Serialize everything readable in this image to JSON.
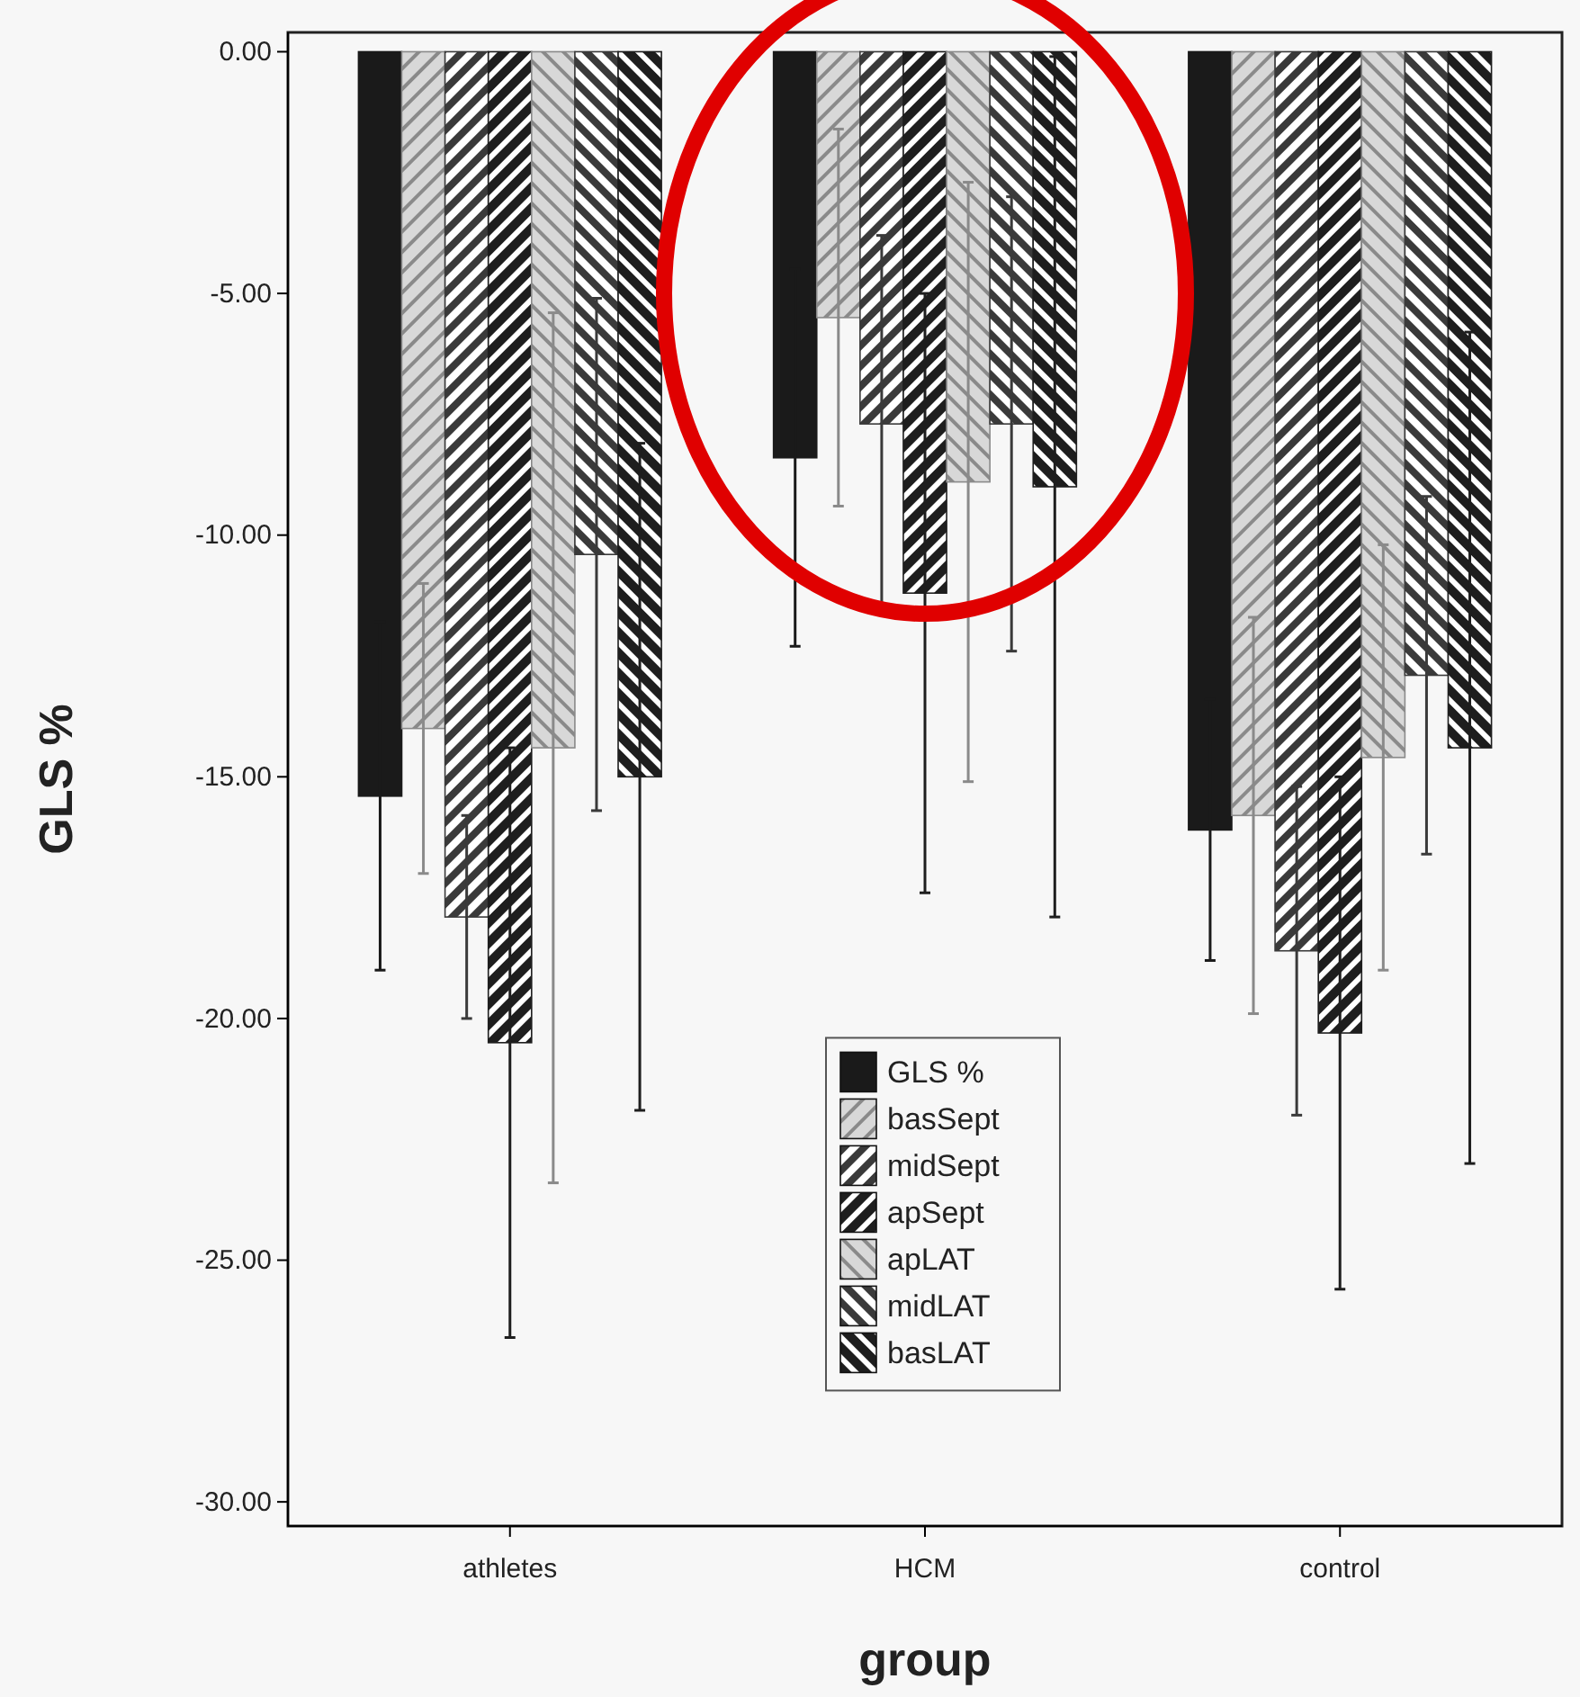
{
  "chart_data": {
    "type": "bar",
    "xlabel": "group",
    "ylabel": "GLS %",
    "categories": [
      "athletes",
      "HCM",
      "control"
    ],
    "ylim": [
      -30.5,
      0.4
    ],
    "yticks": [
      {
        "value": 0,
        "label": "0.00"
      },
      {
        "value": -5,
        "label": "-5.00"
      },
      {
        "value": -10,
        "label": "-10.00"
      },
      {
        "value": -15,
        "label": "-15.00"
      },
      {
        "value": -20,
        "label": "-20.00"
      },
      {
        "value": -25,
        "label": "-25.00"
      },
      {
        "value": -30,
        "label": "-30.00"
      }
    ],
    "legend": "bottom",
    "grid": false,
    "series": [
      {
        "name": "GLS %",
        "color": "#1a1a1a",
        "values": [
          -15.4,
          -8.4,
          -16.1
        ],
        "errors": [
          3.6,
          3.9,
          2.7
        ]
      },
      {
        "name": "basSept",
        "color": "#8a8a8a",
        "values": [
          -14.0,
          -5.5,
          -15.8
        ],
        "errors": [
          3.0,
          3.9,
          4.1
        ]
      },
      {
        "name": "midSept",
        "color": "#3a3a3a",
        "values": [
          -17.9,
          -7.7,
          -18.6
        ],
        "errors": [
          2.1,
          3.9,
          3.4
        ]
      },
      {
        "name": "apSept",
        "color": "#1e1e1e",
        "values": [
          -20.5,
          -11.2,
          -20.3
        ],
        "errors": [
          6.1,
          6.2,
          5.3
        ]
      },
      {
        "name": "apLAT",
        "color": "#8a8a8a",
        "values": [
          -14.4,
          -8.9,
          -14.6
        ],
        "errors": [
          9.0,
          6.2,
          4.4
        ]
      },
      {
        "name": "midLAT",
        "color": "#3a3a3a",
        "values": [
          -10.4,
          -7.7,
          -12.9
        ],
        "errors": [
          5.3,
          4.7,
          3.7
        ]
      },
      {
        "name": "basLAT",
        "color": "#1e1e1e",
        "values": [
          -15.0,
          -9.0,
          -14.4
        ],
        "errors": [
          6.9,
          8.9,
          8.6
        ]
      }
    ]
  }
}
